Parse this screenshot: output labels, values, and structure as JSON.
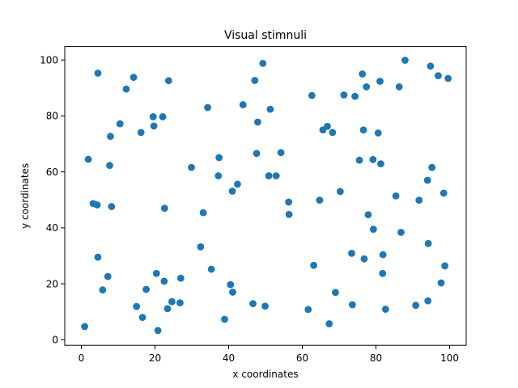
{
  "chart_data": {
    "type": "scatter",
    "title": "Visual stimnuli",
    "xlabel": "x coordinates",
    "ylabel": "y coordinates",
    "xlim": [
      -4.5,
      104.5
    ],
    "ylim": [
      -2,
      104.8
    ],
    "xticks": [
      0,
      20,
      40,
      60,
      80,
      100
    ],
    "yticks": [
      0,
      20,
      40,
      60,
      80,
      100
    ],
    "grid": false,
    "legend": "none",
    "marker_color": "#1f77b4",
    "points": [
      {
        "x": 0.9,
        "y": 4.7
      },
      {
        "x": 1.9,
        "y": 64.5
      },
      {
        "x": 3.2,
        "y": 48.7
      },
      {
        "x": 4.3,
        "y": 48.2
      },
      {
        "x": 4.5,
        "y": 29.5
      },
      {
        "x": 4.5,
        "y": 95.3
      },
      {
        "x": 5.8,
        "y": 17.8
      },
      {
        "x": 7.2,
        "y": 22.6
      },
      {
        "x": 7.7,
        "y": 62.3
      },
      {
        "x": 7.9,
        "y": 72.7
      },
      {
        "x": 8.2,
        "y": 47.6
      },
      {
        "x": 10.5,
        "y": 77.2
      },
      {
        "x": 12.2,
        "y": 89.6
      },
      {
        "x": 14.2,
        "y": 93.8
      },
      {
        "x": 15.0,
        "y": 11.9
      },
      {
        "x": 16.2,
        "y": 74.1
      },
      {
        "x": 16.6,
        "y": 8.0
      },
      {
        "x": 17.6,
        "y": 18.0
      },
      {
        "x": 19.5,
        "y": 79.7
      },
      {
        "x": 19.7,
        "y": 76.4
      },
      {
        "x": 20.4,
        "y": 23.7
      },
      {
        "x": 20.8,
        "y": 3.3
      },
      {
        "x": 22.1,
        "y": 79.7
      },
      {
        "x": 22.5,
        "y": 20.9
      },
      {
        "x": 22.6,
        "y": 47.0
      },
      {
        "x": 23.4,
        "y": 11.1
      },
      {
        "x": 23.7,
        "y": 92.6
      },
      {
        "x": 24.6,
        "y": 13.6
      },
      {
        "x": 26.8,
        "y": 13.2
      },
      {
        "x": 27.0,
        "y": 22.0
      },
      {
        "x": 29.9,
        "y": 61.6
      },
      {
        "x": 32.4,
        "y": 33.2
      },
      {
        "x": 33.1,
        "y": 45.4
      },
      {
        "x": 34.3,
        "y": 83.0
      },
      {
        "x": 35.3,
        "y": 25.2
      },
      {
        "x": 37.2,
        "y": 58.6
      },
      {
        "x": 37.4,
        "y": 65.1
      },
      {
        "x": 38.9,
        "y": 7.3
      },
      {
        "x": 40.5,
        "y": 19.7
      },
      {
        "x": 41.0,
        "y": 53.1
      },
      {
        "x": 41.1,
        "y": 17.0
      },
      {
        "x": 42.4,
        "y": 55.6
      },
      {
        "x": 43.9,
        "y": 84.0
      },
      {
        "x": 46.6,
        "y": 12.9
      },
      {
        "x": 47.1,
        "y": 92.7
      },
      {
        "x": 47.6,
        "y": 66.6
      },
      {
        "x": 47.9,
        "y": 77.8
      },
      {
        "x": 49.3,
        "y": 98.8
      },
      {
        "x": 49.9,
        "y": 12.0
      },
      {
        "x": 50.9,
        "y": 58.6
      },
      {
        "x": 51.3,
        "y": 82.4
      },
      {
        "x": 52.9,
        "y": 58.6
      },
      {
        "x": 54.2,
        "y": 66.9
      },
      {
        "x": 56.3,
        "y": 49.2
      },
      {
        "x": 56.4,
        "y": 44.8
      },
      {
        "x": 61.6,
        "y": 10.8
      },
      {
        "x": 62.6,
        "y": 87.3
      },
      {
        "x": 63.1,
        "y": 26.6
      },
      {
        "x": 64.7,
        "y": 49.9
      },
      {
        "x": 65.6,
        "y": 75.0
      },
      {
        "x": 66.8,
        "y": 76.3
      },
      {
        "x": 67.3,
        "y": 5.7
      },
      {
        "x": 68.2,
        "y": 74.1
      },
      {
        "x": 69.0,
        "y": 16.9
      },
      {
        "x": 70.3,
        "y": 53.0
      },
      {
        "x": 71.3,
        "y": 87.5
      },
      {
        "x": 73.4,
        "y": 30.9
      },
      {
        "x": 73.6,
        "y": 12.5
      },
      {
        "x": 74.3,
        "y": 87.0
      },
      {
        "x": 75.5,
        "y": 64.2
      },
      {
        "x": 76.3,
        "y": 95.0
      },
      {
        "x": 76.6,
        "y": 75.0
      },
      {
        "x": 76.8,
        "y": 28.9
      },
      {
        "x": 77.4,
        "y": 90.4
      },
      {
        "x": 77.9,
        "y": 44.7
      },
      {
        "x": 79.2,
        "y": 64.4
      },
      {
        "x": 79.3,
        "y": 39.5
      },
      {
        "x": 80.6,
        "y": 73.9
      },
      {
        "x": 81.1,
        "y": 92.4
      },
      {
        "x": 81.3,
        "y": 62.9
      },
      {
        "x": 81.8,
        "y": 23.7
      },
      {
        "x": 81.9,
        "y": 30.4
      },
      {
        "x": 82.6,
        "y": 10.9
      },
      {
        "x": 85.4,
        "y": 51.4
      },
      {
        "x": 86.3,
        "y": 90.4
      },
      {
        "x": 86.8,
        "y": 38.4
      },
      {
        "x": 87.9,
        "y": 99.9
      },
      {
        "x": 90.8,
        "y": 12.3
      },
      {
        "x": 91.7,
        "y": 49.9
      },
      {
        "x": 94.0,
        "y": 57.0
      },
      {
        "x": 94.1,
        "y": 13.9
      },
      {
        "x": 94.2,
        "y": 34.4
      },
      {
        "x": 94.8,
        "y": 97.8
      },
      {
        "x": 95.2,
        "y": 61.6
      },
      {
        "x": 96.9,
        "y": 94.4
      },
      {
        "x": 97.7,
        "y": 20.3
      },
      {
        "x": 98.4,
        "y": 52.4
      },
      {
        "x": 98.7,
        "y": 26.4
      },
      {
        "x": 99.6,
        "y": 93.4
      }
    ]
  }
}
